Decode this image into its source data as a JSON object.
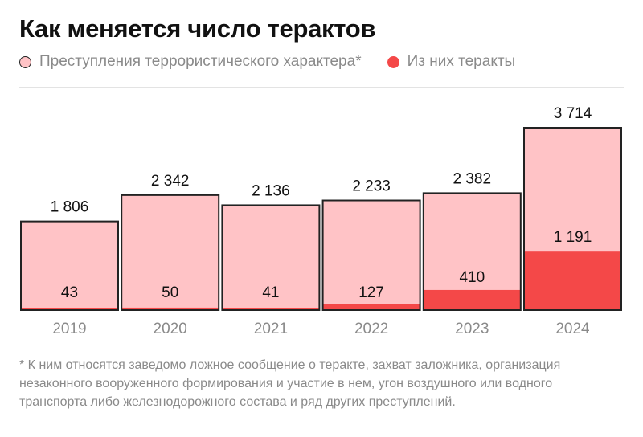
{
  "title": "Как меняется число терактов",
  "legend": {
    "total": "Преступления террористического характера*",
    "attacks": "Из них теракты"
  },
  "colors": {
    "total_fill": "#ffc3c6",
    "attacks_fill": "#f44848",
    "border": "#222222",
    "axis_label": "#8a8a8a"
  },
  "chart_data": {
    "type": "bar",
    "categories": [
      "2019",
      "2020",
      "2021",
      "2022",
      "2023",
      "2024"
    ],
    "series": [
      {
        "name": "Преступления террористического характера*",
        "values": [
          1806,
          2342,
          2136,
          2233,
          2382,
          3714
        ]
      },
      {
        "name": "Из них теракты",
        "values": [
          43,
          50,
          41,
          127,
          410,
          1191
        ]
      }
    ],
    "total_labels": [
      "1 806",
      "2 342",
      "2 136",
      "2 233",
      "2 382",
      "3 714"
    ],
    "attack_labels": [
      "43",
      "50",
      "41",
      "127",
      "410",
      "1 191"
    ],
    "ylim": [
      0,
      3714
    ],
    "grid": false,
    "legend_position": "top-left"
  },
  "footnote": "* К ним относятся заведомо ложное сообщение о теракте, захват заложника, организация незаконного вооруженного формирования и участие в нем, угон воздушного или водного транспорта либо железнодорожного состава и ряд других преступлений."
}
